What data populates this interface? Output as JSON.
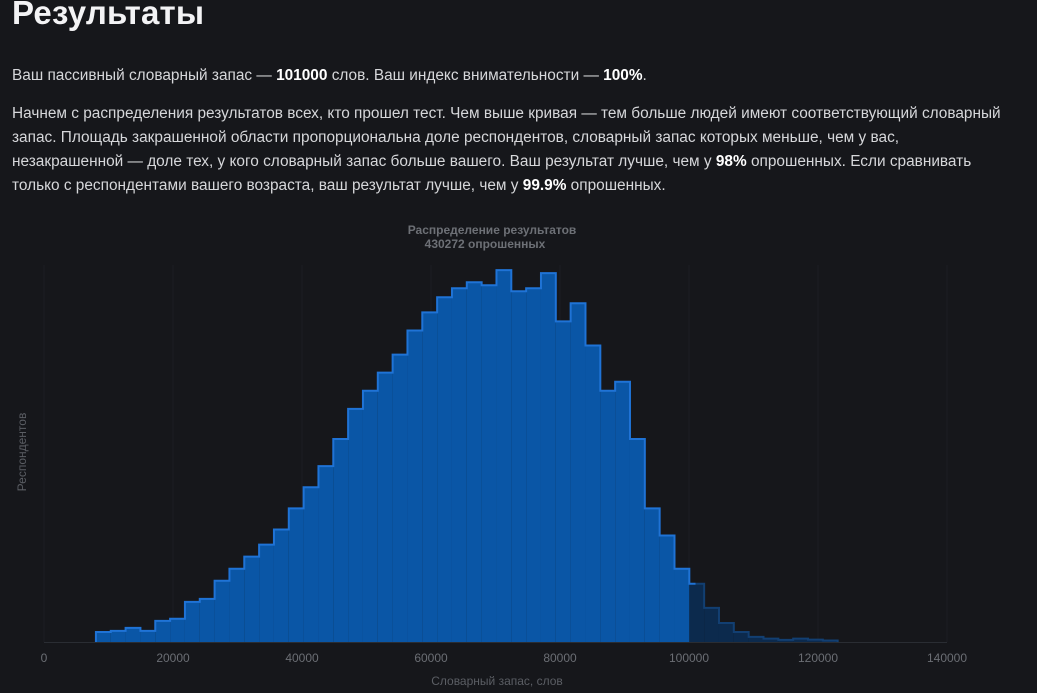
{
  "page": {
    "title": "Результаты",
    "summary": {
      "prefix": "Ваш пассивный словарный запас — ",
      "vocab": "101000",
      "middle": " слов. Ваш индекс внимательности — ",
      "attention": "100%",
      "suffix": "."
    },
    "description": {
      "part1": "Начнем с распределения результатов всех, кто прошел тест. Чем выше кривая — тем больше людей имеют соответствующий словарный запас. Площадь закрашенной области пропорциональна доле респондентов, словарный запас которых меньше, чем у вас, незакрашенной — доле тех, у кого словарный запас больше вашего. Ваш результат лучше, чем у ",
      "pct_all": "98%",
      "part2": " опрошенных. Если сравнивать только с респондентами вашего возраста, ваш результат лучше, чем у ",
      "pct_age": "99.9%",
      "part3": " опрошенных."
    }
  },
  "chart_data": {
    "type": "area",
    "title": "Распределение результатов",
    "subtitle": "430272 опрошенных",
    "xlabel": "Словарный запас, слов",
    "ylabel": "Респондентов",
    "xlim": [
      0,
      140000
    ],
    "ylim": [
      0,
      12500
    ],
    "xticks": [
      "0",
      "20000",
      "40000",
      "60000",
      "80000",
      "100000",
      "120000",
      "140000"
    ],
    "user_value": 101000,
    "bin_width": 2300,
    "x": [
      9200,
      11500,
      13800,
      16100,
      18400,
      20700,
      23000,
      25300,
      27600,
      29900,
      32200,
      34500,
      36800,
      39100,
      41400,
      43700,
      46000,
      48300,
      50600,
      52900,
      55200,
      57500,
      59800,
      62100,
      64400,
      66700,
      69000,
      71300,
      73600,
      75900,
      78200,
      80500,
      82800,
      85100,
      87400,
      89700,
      92000,
      94300,
      96600,
      98900,
      101200,
      103500,
      105800,
      108100,
      110400,
      112700,
      115000,
      117300,
      119600,
      121900
    ],
    "values": [
      330,
      370,
      470,
      370,
      700,
      770,
      1330,
      1430,
      2030,
      2430,
      2830,
      3230,
      3730,
      4430,
      5130,
      5830,
      6730,
      7730,
      8330,
      8930,
      9530,
      10330,
      10930,
      11430,
      11730,
      11930,
      11830,
      12330,
      11630,
      11730,
      12230,
      10630,
      11230,
      9830,
      8330,
      8630,
      6730,
      4430,
      3530,
      2430,
      1930,
      1130,
      630,
      330,
      170,
      110,
      70,
      110,
      80,
      50
    ]
  }
}
